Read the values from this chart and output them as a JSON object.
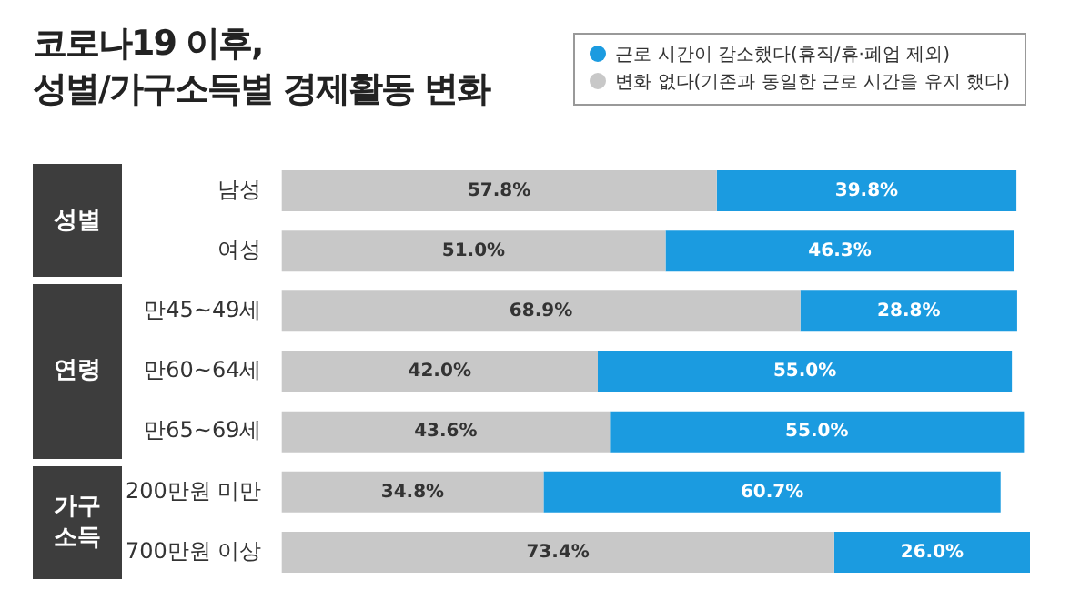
{
  "chart_data": {
    "type": "bar",
    "orientation": "horizontal",
    "stacked": true,
    "title": "코로나19 이후,\n성별/가구소득별 경제활동 변화",
    "categories": [
      "남성",
      "여성",
      "만45~49세",
      "만60~64세",
      "만65~69세",
      "200만원 미만",
      "700만원 이상"
    ],
    "series": [
      {
        "name": "변화 없다(기존과 동일한 근로 시간을 유지 했다)",
        "color": "#c8c8c8",
        "values": [
          57.8,
          51.0,
          68.9,
          42.0,
          43.6,
          34.8,
          73.4
        ],
        "value_labels": [
          "57.8%",
          "51.0%",
          "68.9%",
          "42.0%",
          "43.6%",
          "34.8%",
          "73.4%"
        ]
      },
      {
        "name": "근로 시간이 감소했다(휴직/휴·폐업 제외)",
        "color": "#1b9be0",
        "values": [
          39.8,
          46.3,
          28.8,
          55.0,
          55.0,
          60.7,
          26.0
        ],
        "value_labels": [
          "39.8%",
          "46.3%",
          "28.8%",
          "55.0%",
          "55.0%",
          "60.7%",
          "26.0%"
        ]
      }
    ],
    "legend": "top right",
    "grid": false,
    "tick_labels": "y",
    "annotations": [
      "성별",
      "연령",
      "가구\n소득"
    ]
  }
}
